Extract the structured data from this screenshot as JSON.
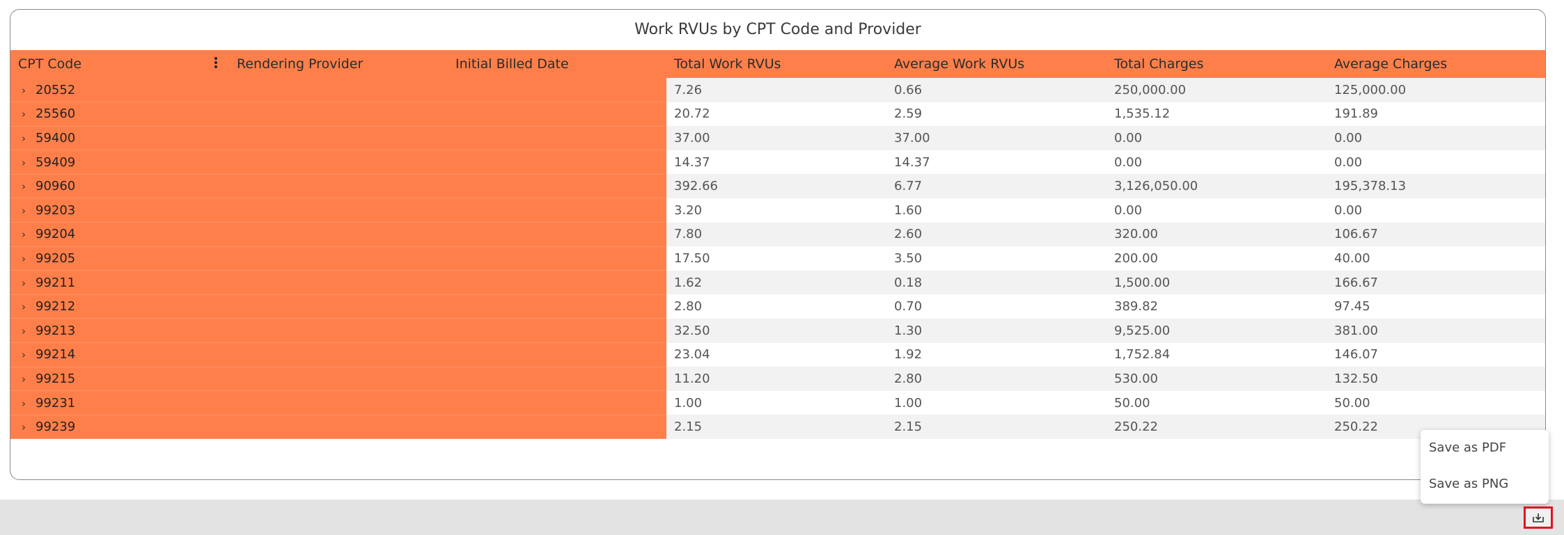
{
  "title": "Work RVUs by CPT Code and Provider",
  "columns": [
    "CPT Code",
    "Rendering Provider",
    "Initial Billed Date",
    "Total Work RVUs",
    "Average Work RVUs",
    "Total Charges",
    "Average Charges"
  ],
  "rows": [
    {
      "code": "20552",
      "total_rvu": "7.26",
      "avg_rvu": "0.66",
      "total_charges": "250,000.00",
      "avg_charges": "125,000.00"
    },
    {
      "code": "25560",
      "total_rvu": "20.72",
      "avg_rvu": "2.59",
      "total_charges": "1,535.12",
      "avg_charges": "191.89"
    },
    {
      "code": "59400",
      "total_rvu": "37.00",
      "avg_rvu": "37.00",
      "total_charges": "0.00",
      "avg_charges": "0.00"
    },
    {
      "code": "59409",
      "total_rvu": "14.37",
      "avg_rvu": "14.37",
      "total_charges": "0.00",
      "avg_charges": "0.00"
    },
    {
      "code": "90960",
      "total_rvu": "392.66",
      "avg_rvu": "6.77",
      "total_charges": "3,126,050.00",
      "avg_charges": "195,378.13"
    },
    {
      "code": "99203",
      "total_rvu": "3.20",
      "avg_rvu": "1.60",
      "total_charges": "0.00",
      "avg_charges": "0.00"
    },
    {
      "code": "99204",
      "total_rvu": "7.80",
      "avg_rvu": "2.60",
      "total_charges": "320.00",
      "avg_charges": "106.67"
    },
    {
      "code": "99205",
      "total_rvu": "17.50",
      "avg_rvu": "3.50",
      "total_charges": "200.00",
      "avg_charges": "40.00"
    },
    {
      "code": "99211",
      "total_rvu": "1.62",
      "avg_rvu": "0.18",
      "total_charges": "1,500.00",
      "avg_charges": "166.67"
    },
    {
      "code": "99212",
      "total_rvu": "2.80",
      "avg_rvu": "0.70",
      "total_charges": "389.82",
      "avg_charges": "97.45"
    },
    {
      "code": "99213",
      "total_rvu": "32.50",
      "avg_rvu": "1.30",
      "total_charges": "9,525.00",
      "avg_charges": "381.00"
    },
    {
      "code": "99214",
      "total_rvu": "23.04",
      "avg_rvu": "1.92",
      "total_charges": "1,752.84",
      "avg_charges": "146.07"
    },
    {
      "code": "99215",
      "total_rvu": "11.20",
      "avg_rvu": "2.80",
      "total_charges": "530.00",
      "avg_charges": "132.50"
    },
    {
      "code": "99231",
      "total_rvu": "1.00",
      "avg_rvu": "1.00",
      "total_charges": "50.00",
      "avg_charges": "50.00"
    },
    {
      "code": "99239",
      "total_rvu": "2.15",
      "avg_rvu": "2.15",
      "total_charges": "250.22",
      "avg_charges": "250.22"
    }
  ],
  "export_menu": {
    "items": [
      "Save as PDF",
      "Save as PNG"
    ]
  },
  "icons": {
    "expand": "chevron-right-icon",
    "column_menu": "more-vertical-icon",
    "download": "download-icon"
  },
  "colors": {
    "pivot_fill": "#ff7f4a",
    "stripe": "#f2f2f2",
    "highlight_border": "#e0141e"
  }
}
